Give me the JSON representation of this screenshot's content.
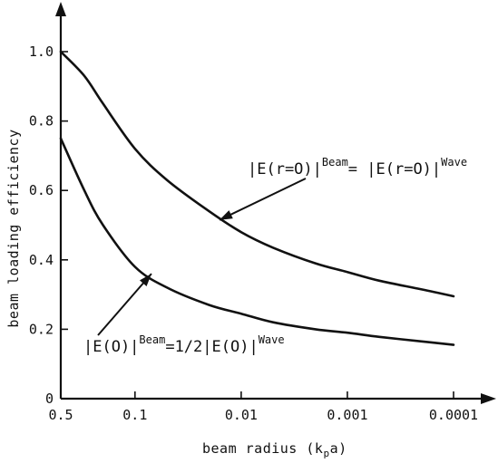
{
  "chart_data": {
    "type": "line",
    "title": "",
    "xlabel": "beam radius (k",
    "xlabel_sub": "p",
    "xlabel_suffix": "a)",
    "ylabel": "beam loading efficiency",
    "x_scale": "log",
    "x_reversed": true,
    "xlim": [
      0.5,
      0.0001
    ],
    "ylim": [
      0,
      1.1
    ],
    "grid": false,
    "x_ticks": [
      {
        "value": 0.5,
        "label": "0.5"
      },
      {
        "value": 0.1,
        "label": "0.1"
      },
      {
        "value": 0.01,
        "label": "0.01"
      },
      {
        "value": 0.001,
        "label": "0.001"
      },
      {
        "value": 0.0001,
        "label": "0.0001"
      }
    ],
    "y_ticks": [
      {
        "value": 0,
        "label": "0"
      },
      {
        "value": 0.2,
        "label": "0.2"
      },
      {
        "value": 0.4,
        "label": "0.4"
      },
      {
        "value": 0.6,
        "label": "0.6"
      },
      {
        "value": 0.8,
        "label": "0.8"
      },
      {
        "value": 1.0,
        "label": "1.0"
      }
    ],
    "series": [
      {
        "x": [
          0.5,
          0.3,
          0.2,
          0.1,
          0.05,
          0.02,
          0.01,
          0.005,
          0.002,
          0.001,
          0.0005,
          0.0002,
          0.0001
        ],
        "y": [
          1.0,
          0.93,
          0.85,
          0.72,
          0.63,
          0.54,
          0.48,
          0.435,
          0.39,
          0.365,
          0.34,
          0.315,
          0.295
        ]
      },
      {
        "x": [
          0.5,
          0.3,
          0.2,
          0.1,
          0.05,
          0.02,
          0.01,
          0.005,
          0.002,
          0.001,
          0.0005,
          0.0002,
          0.0001
        ],
        "y": [
          0.75,
          0.6,
          0.5,
          0.38,
          0.32,
          0.27,
          0.245,
          0.22,
          0.2,
          0.19,
          0.178,
          0.165,
          0.155
        ]
      }
    ],
    "annotations": [
      {
        "left": "|E(r=O)|",
        "sup1": "Beam",
        "middle": "= |E(r=O)|",
        "sup2": "Wave",
        "arrow_to": {
          "x": 0.016,
          "y": 0.515
        }
      },
      {
        "left": "|E(O)|",
        "sup1": "Beam",
        "middle": "=1/2|E(O)|",
        "sup2": "Wave",
        "arrow_to": {
          "x": 0.07,
          "y": 0.36
        }
      }
    ]
  }
}
